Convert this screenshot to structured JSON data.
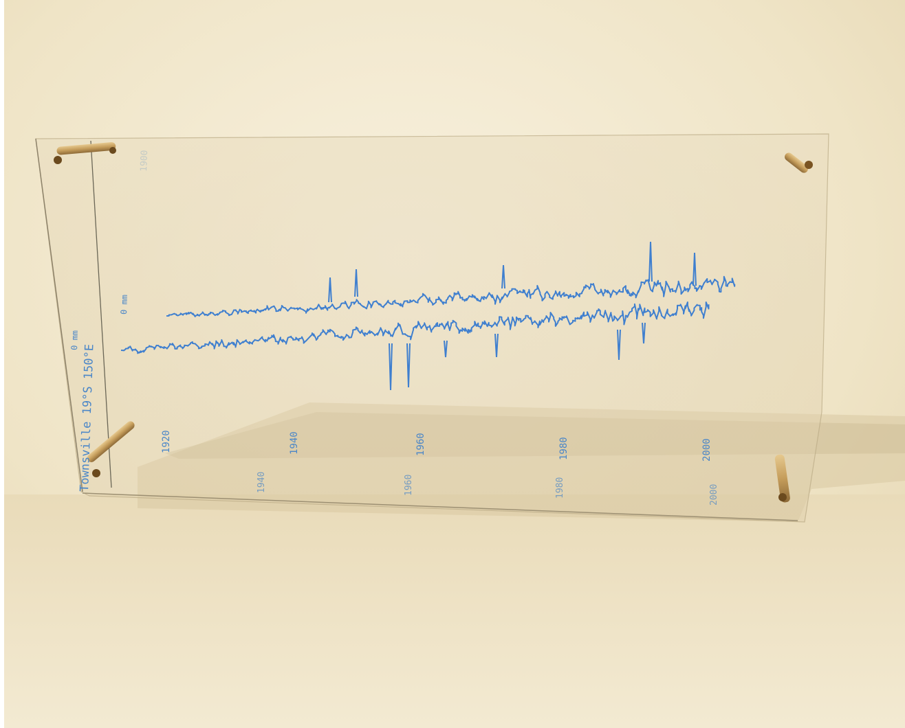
{
  "photo": {
    "subject": "Hand-drawn blue trace on a clear acrylic panel with brass standoffs, photographed against a cream wall",
    "ink_color": "#3f7fcf",
    "wall_color": "#efe6cf",
    "shadow_color": "#d6c7a6",
    "standoff_color": "#c9a76a"
  },
  "panel_text": {
    "vertical_caption": "Townsville 19°S 150°E",
    "baseline_marker": "0 mm",
    "upper_baseline_marker": "0 mm",
    "faint_year_label": "1900"
  },
  "year_labels": [
    "1920",
    "1940",
    "1960",
    "1980",
    "2000"
  ],
  "shadow_year_labels": [
    "1940",
    "1960",
    "1980",
    "2000"
  ]
}
